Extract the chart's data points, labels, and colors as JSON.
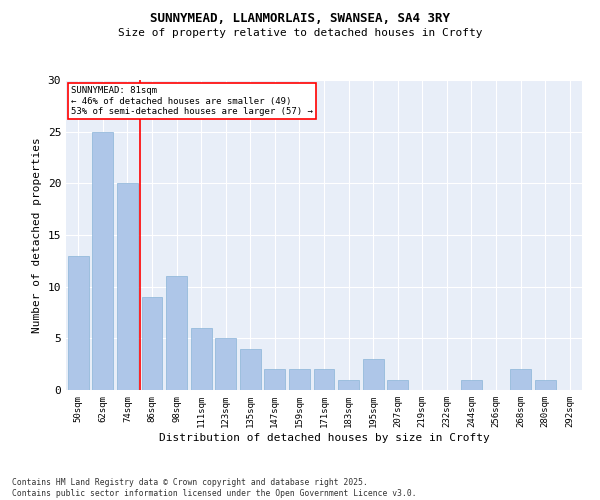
{
  "title_line1": "SUNNYMEAD, LLANMORLAIS, SWANSEA, SA4 3RY",
  "title_line2": "Size of property relative to detached houses in Crofty",
  "xlabel": "Distribution of detached houses by size in Crofty",
  "ylabel": "Number of detached properties",
  "categories": [
    "50sqm",
    "62sqm",
    "74sqm",
    "86sqm",
    "98sqm",
    "111sqm",
    "123sqm",
    "135sqm",
    "147sqm",
    "159sqm",
    "171sqm",
    "183sqm",
    "195sqm",
    "207sqm",
    "219sqm",
    "232sqm",
    "244sqm",
    "256sqm",
    "268sqm",
    "280sqm",
    "292sqm"
  ],
  "values": [
    13,
    25,
    20,
    9,
    11,
    6,
    5,
    4,
    2,
    2,
    2,
    1,
    3,
    1,
    0,
    0,
    1,
    0,
    2,
    1,
    0
  ],
  "bar_color": "#aec6e8",
  "bar_edge_color": "#8ab4d8",
  "annotation_text_line1": "SUNNYMEAD: 81sqm",
  "annotation_text_line2": "← 46% of detached houses are smaller (49)",
  "annotation_text_line3": "53% of semi-detached houses are larger (57) →",
  "annotation_box_color": "white",
  "annotation_box_edge_color": "red",
  "vline_color": "red",
  "ylim": [
    0,
    30
  ],
  "yticks": [
    0,
    5,
    10,
    15,
    20,
    25,
    30
  ],
  "background_color": "#e8eef8",
  "grid_color": "white",
  "footer_line1": "Contains HM Land Registry data © Crown copyright and database right 2025.",
  "footer_line2": "Contains public sector information licensed under the Open Government Licence v3.0."
}
